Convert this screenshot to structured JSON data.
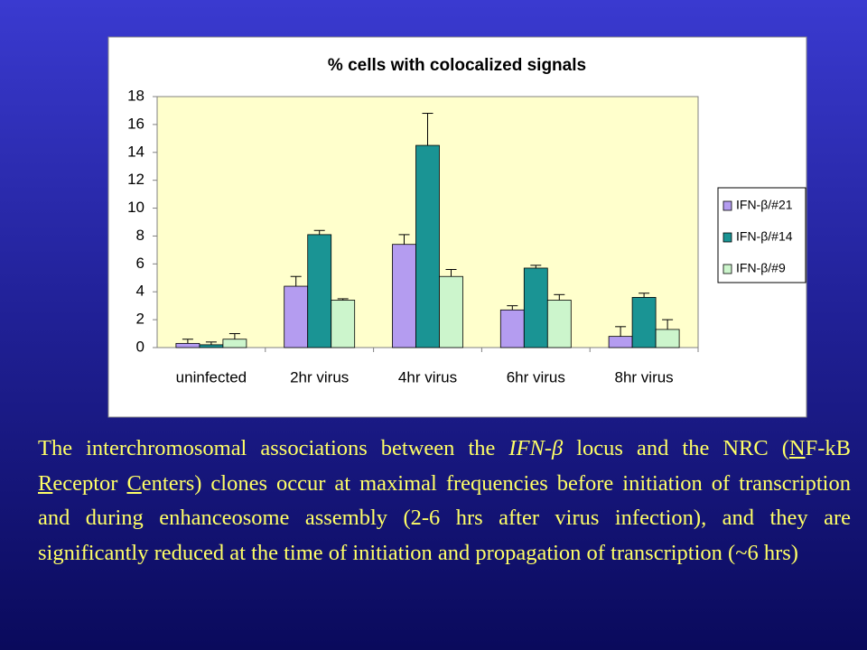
{
  "chart_data": {
    "type": "bar",
    "title": "% cells with colocalized signals",
    "categories": [
      "uninfected",
      "2hr virus",
      "4hr virus",
      "6hr virus",
      "8hr virus"
    ],
    "series": [
      {
        "name": "IFN-β/#21",
        "color": "#b49cf0",
        "values": [
          0.3,
          4.4,
          7.4,
          2.7,
          0.8
        ],
        "errors": [
          0.3,
          0.7,
          0.7,
          0.3,
          0.7
        ]
      },
      {
        "name": "IFN-β/#14",
        "color": "#1a9494",
        "values": [
          0.2,
          8.1,
          14.5,
          5.7,
          3.6
        ],
        "errors": [
          0.2,
          0.3,
          2.3,
          0.2,
          0.3
        ]
      },
      {
        "name": "IFN-β/#9",
        "color": "#ccf5cc",
        "values": [
          0.6,
          3.4,
          5.1,
          3.4,
          1.3
        ],
        "errors": [
          0.4,
          0.1,
          0.5,
          0.4,
          0.7
        ]
      }
    ],
    "ylim": [
      0,
      18
    ],
    "yticks": [
      0,
      2,
      4,
      6,
      8,
      10,
      12,
      14,
      16,
      18
    ],
    "grid": false,
    "legend": "right"
  },
  "caption": [
    "The interchromosomal associations between the ",
    "IFN-β",
    " locus and the NRC (",
    "N",
    "F-kB ",
    "R",
    "eceptor ",
    "C",
    "enters)  clones occur at maximal frequencies before initiation of transcription and during enhanceosome assembly (2-6 hrs after virus infection), and they are significantly reduced at the time of initiation and propagation of transcription (~6 hrs)"
  ]
}
